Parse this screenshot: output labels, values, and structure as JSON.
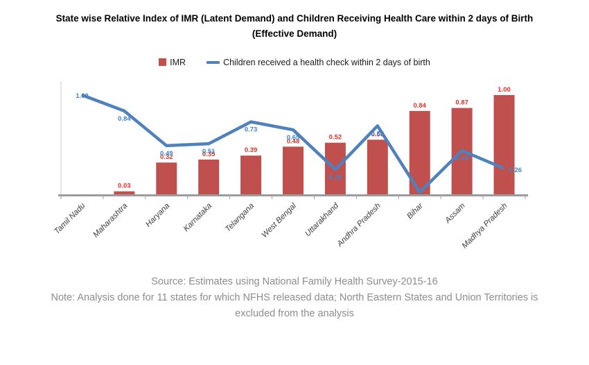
{
  "title": "State wise Relative Index of IMR (Latent Demand) and Children Receiving Health Care within 2 days of Birth (Effective Demand)",
  "legend": {
    "imr_label": "IMR",
    "line_label": "Children received a health check within 2 days of birth"
  },
  "colors": {
    "bar": "#c0504d",
    "bar_label": "#e03226",
    "line": "#4f81bd",
    "line_label": "#3f86c8",
    "axis": "#9c9c9c",
    "axis_left": "#c9c9c9",
    "category_label": "#3d3d3d"
  },
  "chart_data": {
    "type": "bar",
    "subtype": "bar-line-combo",
    "categories": [
      "Tamil Nadu",
      "Maharashtra",
      "Haryana",
      "Karnataka",
      "Telangana",
      "West Bengal",
      "Uttarakhand",
      "Andhra Pradesh",
      "Bihar",
      "Assam",
      "Madhya Pradesh"
    ],
    "series": [
      {
        "name": "IMR",
        "type": "bar",
        "values": [
          0.0,
          0.03,
          0.32,
          0.35,
          0.39,
          0.48,
          0.52,
          0.55,
          0.84,
          0.87,
          1.0
        ],
        "labels": [
          "",
          "0.03",
          "0.32",
          "0.35",
          "0.39",
          "0.48",
          "0.52",
          "0.55",
          "0.84",
          "0.87",
          "1.00"
        ]
      },
      {
        "name": "Children received a health check within 2 days of birth",
        "type": "line",
        "values": [
          1.0,
          0.84,
          0.49,
          0.51,
          0.73,
          0.65,
          0.25,
          0.69,
          0.02,
          0.44,
          0.26
        ],
        "labels": [
          "1.00",
          "0.84",
          "0.49",
          "0.51",
          "0.73",
          "0.65",
          "0.25",
          "0.69",
          "",
          "0.44",
          "0.26"
        ]
      }
    ],
    "ylim": [
      0,
      1.05
    ],
    "grid": false,
    "legend_position": "top",
    "xlabel": "",
    "ylabel": ""
  },
  "source_note": {
    "source": "Source: Estimates using National Family Health Survey-2015-16",
    "note": "Note: Analysis done for 11 states for which NFHS released data; North Eastern States and Union Territories is excluded from the analysis"
  }
}
